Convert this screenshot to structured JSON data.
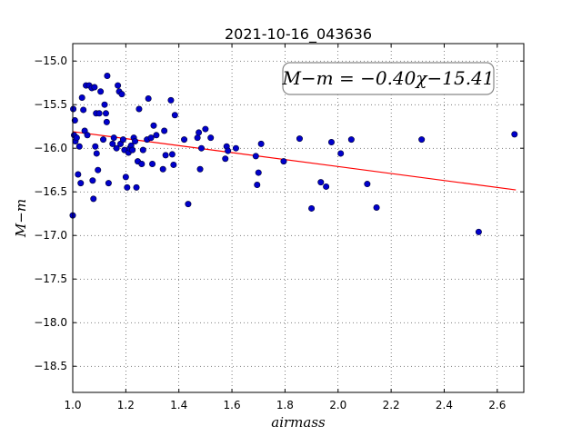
{
  "chart_data": {
    "type": "scatter",
    "title": "2021-10-16_043636",
    "xlabel": "airmass",
    "ylabel": "M−m",
    "xlim": [
      1.0,
      2.7
    ],
    "ylim": [
      -18.8,
      -14.8
    ],
    "y_inverted": true,
    "grid": true,
    "x_ticks": [
      "1.0",
      "1.2",
      "1.4",
      "1.6",
      "1.8",
      "2.0",
      "2.2",
      "2.4",
      "2.6"
    ],
    "y_ticks": [
      "−15.0",
      "−15.5",
      "−16.0",
      "−16.5",
      "−17.0",
      "−17.5",
      "−18.0",
      "−18.5"
    ],
    "annotation": "M−m = −0.40χ−15.41",
    "marker_color": "#0000cc",
    "fit_color": "#ff0000",
    "fit": {
      "slope": -0.4,
      "intercept": -15.41,
      "x_range": [
        1.0,
        2.67
      ]
    },
    "points": [
      [
        1.0,
        -16.77
      ],
      [
        1.002,
        -15.55
      ],
      [
        1.005,
        -15.85
      ],
      [
        1.008,
        -15.68
      ],
      [
        1.01,
        -15.92
      ],
      [
        1.015,
        -15.88
      ],
      [
        1.02,
        -16.3
      ],
      [
        1.025,
        -15.98
      ],
      [
        1.03,
        -16.4
      ],
      [
        1.035,
        -15.42
      ],
      [
        1.04,
        -15.56
      ],
      [
        1.045,
        -15.8
      ],
      [
        1.05,
        -15.28
      ],
      [
        1.055,
        -15.85
      ],
      [
        1.062,
        -15.28
      ],
      [
        1.072,
        -15.31
      ],
      [
        1.075,
        -16.37
      ],
      [
        1.078,
        -16.58
      ],
      [
        1.082,
        -15.3
      ],
      [
        1.085,
        -15.98
      ],
      [
        1.088,
        -15.6
      ],
      [
        1.09,
        -16.06
      ],
      [
        1.095,
        -16.25
      ],
      [
        1.1,
        -15.6
      ],
      [
        1.105,
        -15.35
      ],
      [
        1.115,
        -15.9
      ],
      [
        1.12,
        -15.5
      ],
      [
        1.125,
        -15.6
      ],
      [
        1.128,
        -15.7
      ],
      [
        1.13,
        -15.17
      ],
      [
        1.135,
        -16.4
      ],
      [
        1.15,
        -15.95
      ],
      [
        1.155,
        -15.88
      ],
      [
        1.165,
        -16.0
      ],
      [
        1.17,
        -15.28
      ],
      [
        1.175,
        -15.35
      ],
      [
        1.18,
        -15.95
      ],
      [
        1.185,
        -15.38
      ],
      [
        1.19,
        -15.9
      ],
      [
        1.195,
        -16.02
      ],
      [
        1.2,
        -16.33
      ],
      [
        1.205,
        -16.45
      ],
      [
        1.21,
        -16.05
      ],
      [
        1.215,
        -16.0
      ],
      [
        1.22,
        -15.97
      ],
      [
        1.225,
        -16.02
      ],
      [
        1.23,
        -15.88
      ],
      [
        1.235,
        -15.92
      ],
      [
        1.24,
        -16.45
      ],
      [
        1.245,
        -16.15
      ],
      [
        1.25,
        -15.55
      ],
      [
        1.26,
        -16.18
      ],
      [
        1.265,
        -16.02
      ],
      [
        1.28,
        -15.9
      ],
      [
        1.285,
        -15.43
      ],
      [
        1.295,
        -15.88
      ],
      [
        1.3,
        -16.18
      ],
      [
        1.305,
        -15.74
      ],
      [
        1.315,
        -15.85
      ],
      [
        1.34,
        -16.24
      ],
      [
        1.345,
        -15.8
      ],
      [
        1.35,
        -16.08
      ],
      [
        1.37,
        -15.45
      ],
      [
        1.375,
        -16.07
      ],
      [
        1.38,
        -16.19
      ],
      [
        1.385,
        -15.62
      ],
      [
        1.42,
        -15.9
      ],
      [
        1.435,
        -16.64
      ],
      [
        1.47,
        -15.88
      ],
      [
        1.475,
        -15.82
      ],
      [
        1.48,
        -16.24
      ],
      [
        1.485,
        -16.0
      ],
      [
        1.5,
        -15.78
      ],
      [
        1.52,
        -15.88
      ],
      [
        1.575,
        -16.12
      ],
      [
        1.58,
        -15.98
      ],
      [
        1.585,
        -16.03
      ],
      [
        1.615,
        -16.0
      ],
      [
        1.69,
        -16.09
      ],
      [
        1.695,
        -16.42
      ],
      [
        1.7,
        -16.28
      ],
      [
        1.71,
        -15.95
      ],
      [
        1.795,
        -16.15
      ],
      [
        1.855,
        -15.89
      ],
      [
        1.9,
        -16.69
      ],
      [
        1.935,
        -16.39
      ],
      [
        1.955,
        -16.44
      ],
      [
        1.975,
        -15.93
      ],
      [
        2.01,
        -16.06
      ],
      [
        2.05,
        -15.9
      ],
      [
        2.11,
        -16.41
      ],
      [
        2.145,
        -16.68
      ],
      [
        2.315,
        -15.9
      ],
      [
        2.53,
        -16.96
      ],
      [
        2.665,
        -15.84
      ]
    ]
  }
}
